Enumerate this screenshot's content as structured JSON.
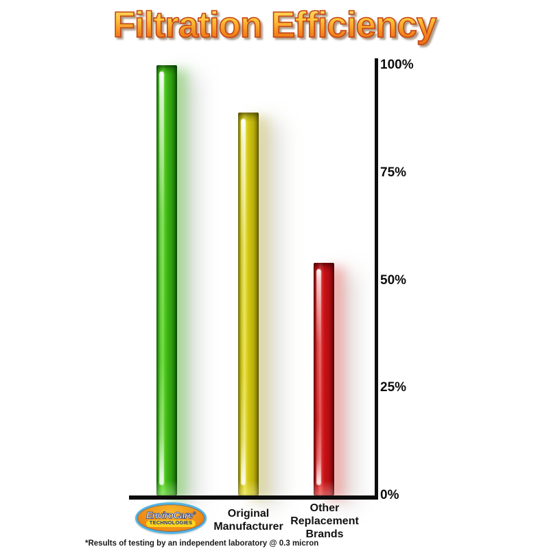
{
  "title": {
    "text": "Filtration Efficiency",
    "color_top": "#ffd95e",
    "color_bottom": "#ee7512",
    "outline_color": "#c2451a"
  },
  "chart_data": {
    "type": "bar",
    "title": "Filtration Efficiency",
    "categories": [
      "EnviroCare Technologies",
      "Original Manufacturer",
      "Other Replacement Brands"
    ],
    "values": [
      100,
      89,
      54
    ],
    "unit": "%",
    "bar_colors": [
      "#3fc01a",
      "#d5c913",
      "#d01217"
    ],
    "ylim": [
      0,
      100
    ],
    "yticks": [
      {
        "label": "100%",
        "value": 100
      },
      {
        "label": "75%",
        "value": 75
      },
      {
        "label": "50%",
        "value": 50
      },
      {
        "label": "25%",
        "value": 25
      },
      {
        "label": "0%",
        "value": 0
      }
    ],
    "axis_side": "right",
    "grid": false,
    "legend": "none",
    "annotation": "*Results of testing by an independent laboratory @ 0.3 micron"
  },
  "x_labels": {
    "original": {
      "line1": "Original",
      "line2": "Manufacturer"
    },
    "other": {
      "line1": "Other",
      "line2": "Replacement",
      "line3": "Brands"
    }
  },
  "logo": {
    "name": "EnviroCare",
    "registered": "®",
    "tagline": "TECHNOLOGIES"
  },
  "footnote": {
    "text": "*Results of testing by an independent laboratory @ 0.3 micron"
  }
}
